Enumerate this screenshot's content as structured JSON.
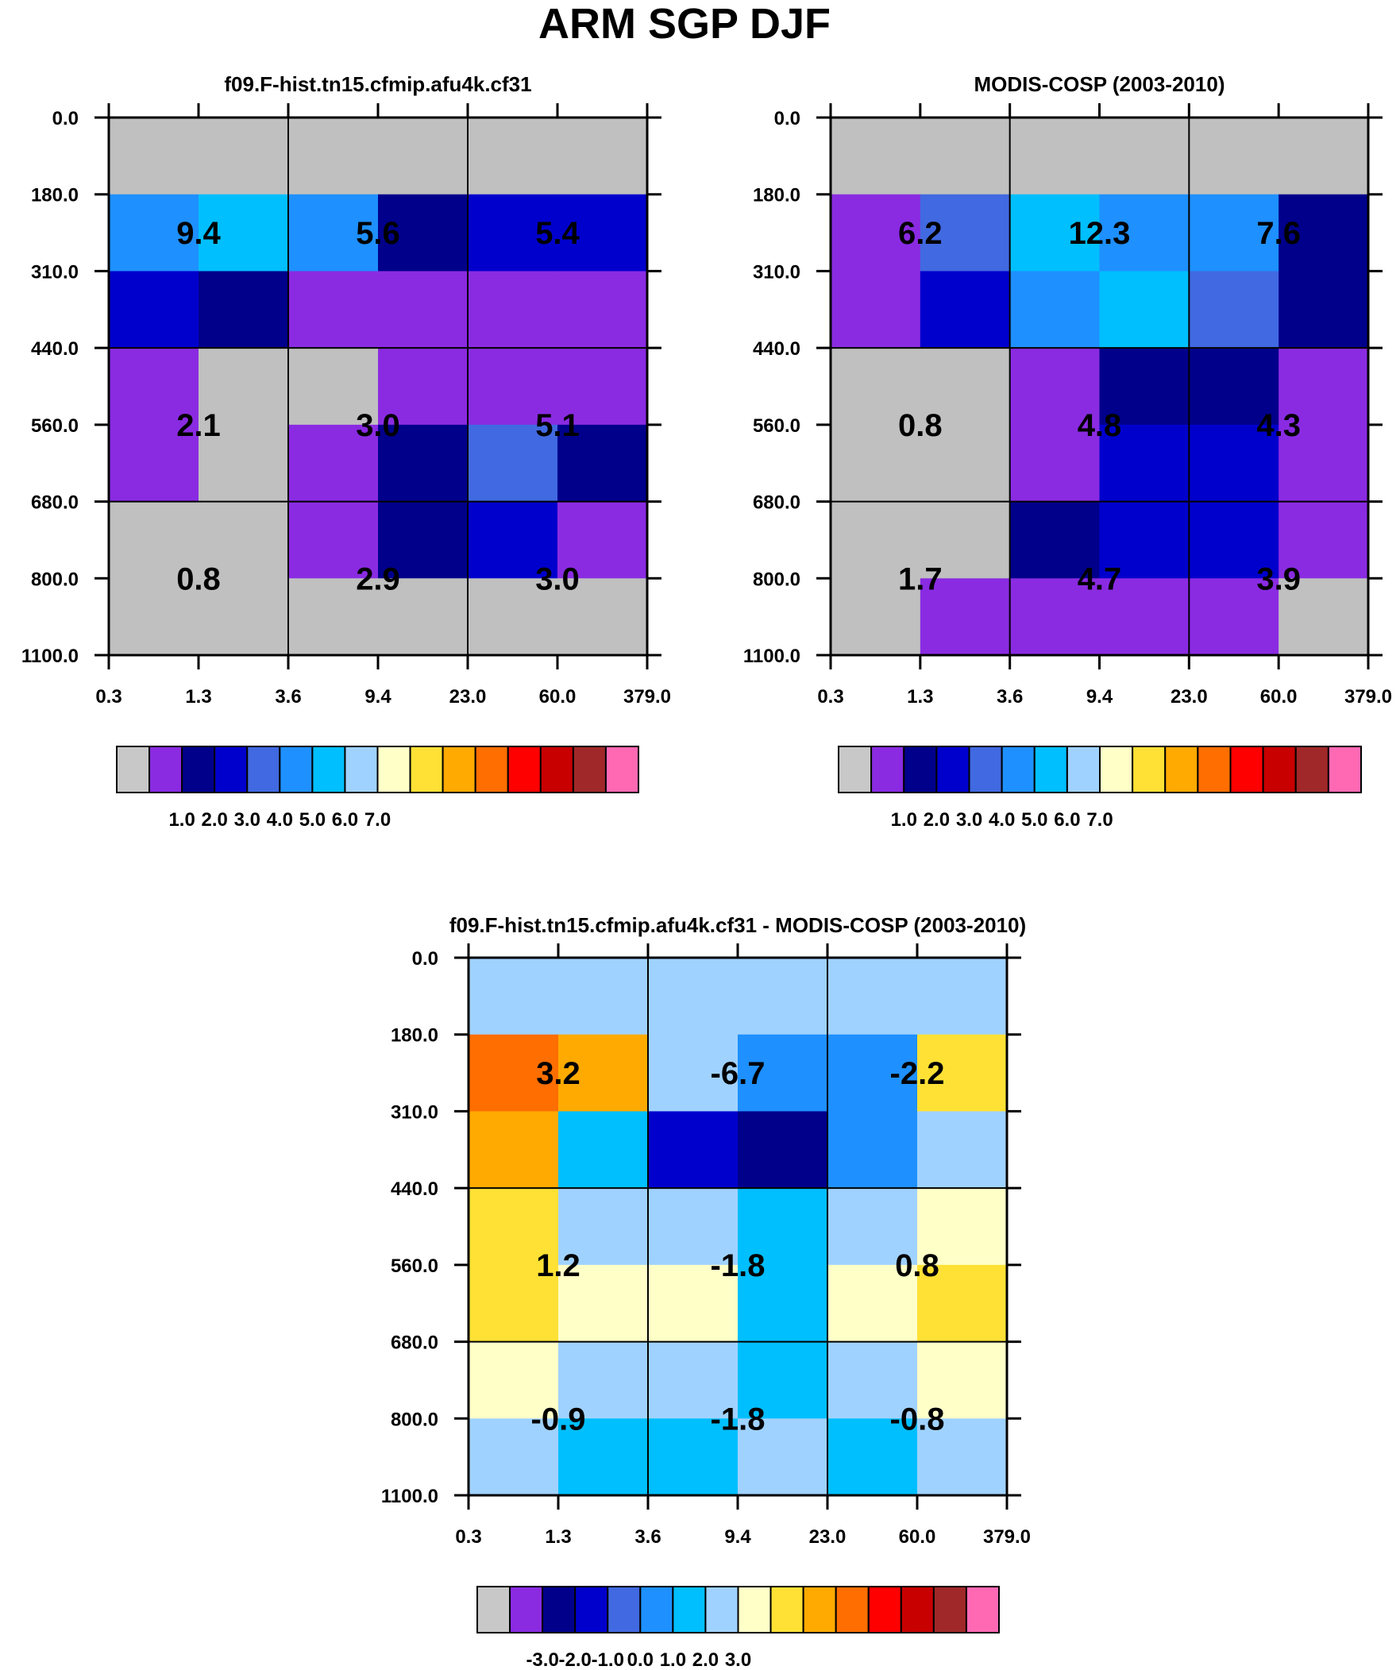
{
  "title": "ARM SGP DJF",
  "chart_data": [
    {
      "type": "heatmap",
      "title": "f09.F-hist.tn15.cfmip.afu4k.cf31",
      "x_ticks": [
        "0.3",
        "1.3",
        "3.6",
        "9.4",
        "23.0",
        "60.0",
        "379.0"
      ],
      "y_ticks": [
        "0.0",
        "180.0",
        "310.0",
        "440.0",
        "560.0",
        "680.0",
        "800.0",
        "1100.0"
      ],
      "cell_colors": [
        [
          "#c0c0c0",
          "#c0c0c0",
          "#c0c0c0",
          "#c0c0c0",
          "#c0c0c0",
          "#c0c0c0"
        ],
        [
          "#1e90ff",
          "#00bfff",
          "#1e90ff",
          "#00008b",
          "#0000cd",
          "#0000cd"
        ],
        [
          "#0000cd",
          "#00008b",
          "#8a2be2",
          "#8a2be2",
          "#8a2be2",
          "#8a2be2"
        ],
        [
          "#8a2be2",
          "#c0c0c0",
          "#c0c0c0",
          "#8a2be2",
          "#8a2be2",
          "#8a2be2"
        ],
        [
          "#8a2be2",
          "#c0c0c0",
          "#8a2be2",
          "#00008b",
          "#4169e1",
          "#00008b"
        ],
        [
          "#c0c0c0",
          "#c0c0c0",
          "#8a2be2",
          "#00008b",
          "#0000cd",
          "#8a2be2"
        ],
        [
          "#c0c0c0",
          "#c0c0c0",
          "#c0c0c0",
          "#c0c0c0",
          "#c0c0c0",
          "#c0c0c0"
        ]
      ],
      "group_labels": [
        [
          "9.4",
          "5.6",
          "5.4"
        ],
        [
          "2.1",
          "3.0",
          "5.1"
        ],
        [
          "0.8",
          "2.9",
          "3.0"
        ]
      ],
      "colorbar": {
        "colors": [
          "#c8c8c8",
          "#8a2be2",
          "#00008b",
          "#0000cd",
          "#4169e1",
          "#1e90ff",
          "#00bfff",
          "#a0d2ff",
          "#ffffc8",
          "#ffe135",
          "#ffaa00",
          "#ff6e00",
          "#ff0000",
          "#c80000",
          "#a02828",
          "#ff69b4"
        ],
        "labels": [
          "1.0",
          "2.0",
          "3.0",
          "4.0",
          "5.0",
          "6.0",
          "7.0"
        ]
      }
    },
    {
      "type": "heatmap",
      "title": "MODIS-COSP (2003-2010)",
      "x_ticks": [
        "0.3",
        "1.3",
        "3.6",
        "9.4",
        "23.0",
        "60.0",
        "379.0"
      ],
      "y_ticks": [
        "0.0",
        "180.0",
        "310.0",
        "440.0",
        "560.0",
        "680.0",
        "800.0",
        "1100.0"
      ],
      "cell_colors": [
        [
          "#c0c0c0",
          "#c0c0c0",
          "#c0c0c0",
          "#c0c0c0",
          "#c0c0c0",
          "#c0c0c0"
        ],
        [
          "#8a2be2",
          "#4169e1",
          "#00bfff",
          "#1e90ff",
          "#1e90ff",
          "#00008b"
        ],
        [
          "#8a2be2",
          "#0000cd",
          "#1e90ff",
          "#00bfff",
          "#4169e1",
          "#00008b"
        ],
        [
          "#c0c0c0",
          "#c0c0c0",
          "#8a2be2",
          "#00008b",
          "#00008b",
          "#8a2be2"
        ],
        [
          "#c0c0c0",
          "#c0c0c0",
          "#8a2be2",
          "#0000cd",
          "#0000cd",
          "#8a2be2"
        ],
        [
          "#c0c0c0",
          "#c0c0c0",
          "#00008b",
          "#0000cd",
          "#0000cd",
          "#8a2be2"
        ],
        [
          "#c0c0c0",
          "#8a2be2",
          "#8a2be2",
          "#8a2be2",
          "#8a2be2",
          "#c0c0c0"
        ]
      ],
      "group_labels": [
        [
          "6.2",
          "12.3",
          "7.6"
        ],
        [
          "0.8",
          "4.8",
          "4.3"
        ],
        [
          "1.7",
          "4.7",
          "3.9"
        ]
      ],
      "colorbar": {
        "colors": [
          "#c8c8c8",
          "#8a2be2",
          "#00008b",
          "#0000cd",
          "#4169e1",
          "#1e90ff",
          "#00bfff",
          "#a0d2ff",
          "#ffffc8",
          "#ffe135",
          "#ffaa00",
          "#ff6e00",
          "#ff0000",
          "#c80000",
          "#a02828",
          "#ff69b4"
        ],
        "labels": [
          "1.0",
          "2.0",
          "3.0",
          "4.0",
          "5.0",
          "6.0",
          "7.0"
        ]
      }
    },
    {
      "type": "heatmap",
      "title": "f09.F-hist.tn15.cfmip.afu4k.cf31 - MODIS-COSP (2003-2010)",
      "x_ticks": [
        "0.3",
        "1.3",
        "3.6",
        "9.4",
        "23.0",
        "60.0",
        "379.0"
      ],
      "y_ticks": [
        "0.0",
        "180.0",
        "310.0",
        "440.0",
        "560.0",
        "680.0",
        "800.0",
        "1100.0"
      ],
      "cell_colors": [
        [
          "#a0d2ff",
          "#a0d2ff",
          "#a0d2ff",
          "#a0d2ff",
          "#a0d2ff",
          "#a0d2ff"
        ],
        [
          "#ff6e00",
          "#ffaa00",
          "#a0d2ff",
          "#1e90ff",
          "#1e90ff",
          "#ffe135"
        ],
        [
          "#ffaa00",
          "#00bfff",
          "#0000cd",
          "#00008b",
          "#1e90ff",
          "#a0d2ff"
        ],
        [
          "#ffe135",
          "#a0d2ff",
          "#a0d2ff",
          "#00bfff",
          "#a0d2ff",
          "#ffffc8"
        ],
        [
          "#ffe135",
          "#ffffc8",
          "#ffffc8",
          "#00bfff",
          "#ffffc8",
          "#ffe135"
        ],
        [
          "#ffffc8",
          "#a0d2ff",
          "#a0d2ff",
          "#00bfff",
          "#a0d2ff",
          "#ffffc8"
        ],
        [
          "#a0d2ff",
          "#00bfff",
          "#00bfff",
          "#a0d2ff",
          "#00bfff",
          "#a0d2ff"
        ]
      ],
      "group_labels": [
        [
          "3.2",
          "-6.7",
          "-2.2"
        ],
        [
          "1.2",
          "-1.8",
          "0.8"
        ],
        [
          "-0.9",
          "-1.8",
          "-0.8"
        ]
      ],
      "colorbar": {
        "colors": [
          "#c8c8c8",
          "#8a2be2",
          "#00008b",
          "#0000cd",
          "#4169e1",
          "#1e90ff",
          "#00bfff",
          "#a0d2ff",
          "#ffffc8",
          "#ffe135",
          "#ffaa00",
          "#ff6e00",
          "#ff0000",
          "#c80000",
          "#a02828",
          "#ff69b4"
        ],
        "labels": [
          "-3.0",
          "-2.0",
          "-1.0",
          "0.0",
          "1.0",
          "2.0",
          "3.0"
        ]
      }
    }
  ]
}
